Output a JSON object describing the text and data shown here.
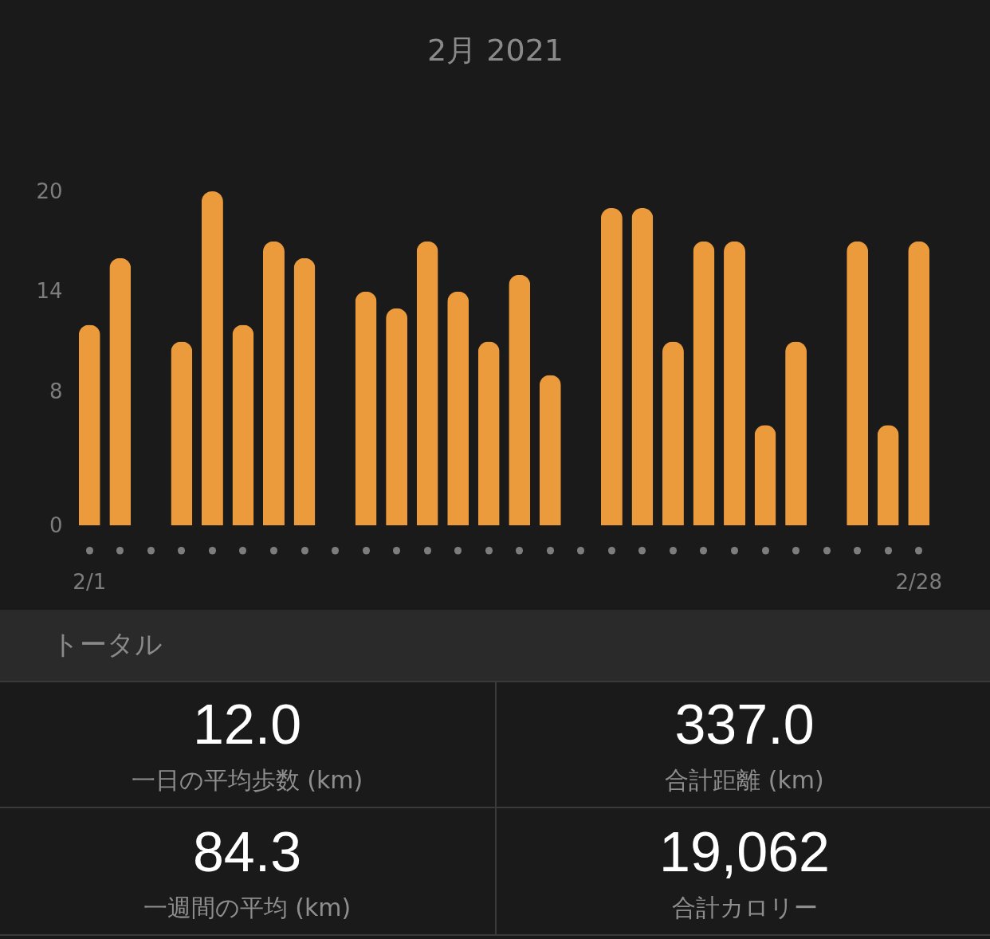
{
  "chart_data": [
    {
      "type": "bar",
      "title": "2月 2021",
      "categories": [
        "2/1",
        null,
        null,
        null,
        null,
        null,
        null,
        null,
        null,
        null,
        null,
        null,
        null,
        null,
        null,
        null,
        null,
        null,
        null,
        null,
        null,
        null,
        null,
        null,
        null,
        null,
        null,
        "2/28"
      ],
      "values": [
        12,
        16,
        0,
        11,
        20,
        12,
        17,
        16,
        0,
        14,
        13,
        17,
        14,
        11,
        15,
        9,
        0,
        19,
        19,
        11,
        17,
        17,
        6,
        11,
        0,
        17,
        6,
        17
      ],
      "color": "#eb9a3c",
      "ylim": [
        0,
        20
      ],
      "yticks": [
        0,
        8,
        14,
        20
      ]
    },
    {
      "type": "other",
      "title": "トータル",
      "annotations": [
        "12.0",
        "一日の平均歩数 (km)",
        "337.0",
        "合計距離 (km)",
        "84.3",
        "一週間の平均 (km)",
        "19,062",
        "合計カロリー"
      ]
    }
  ]
}
